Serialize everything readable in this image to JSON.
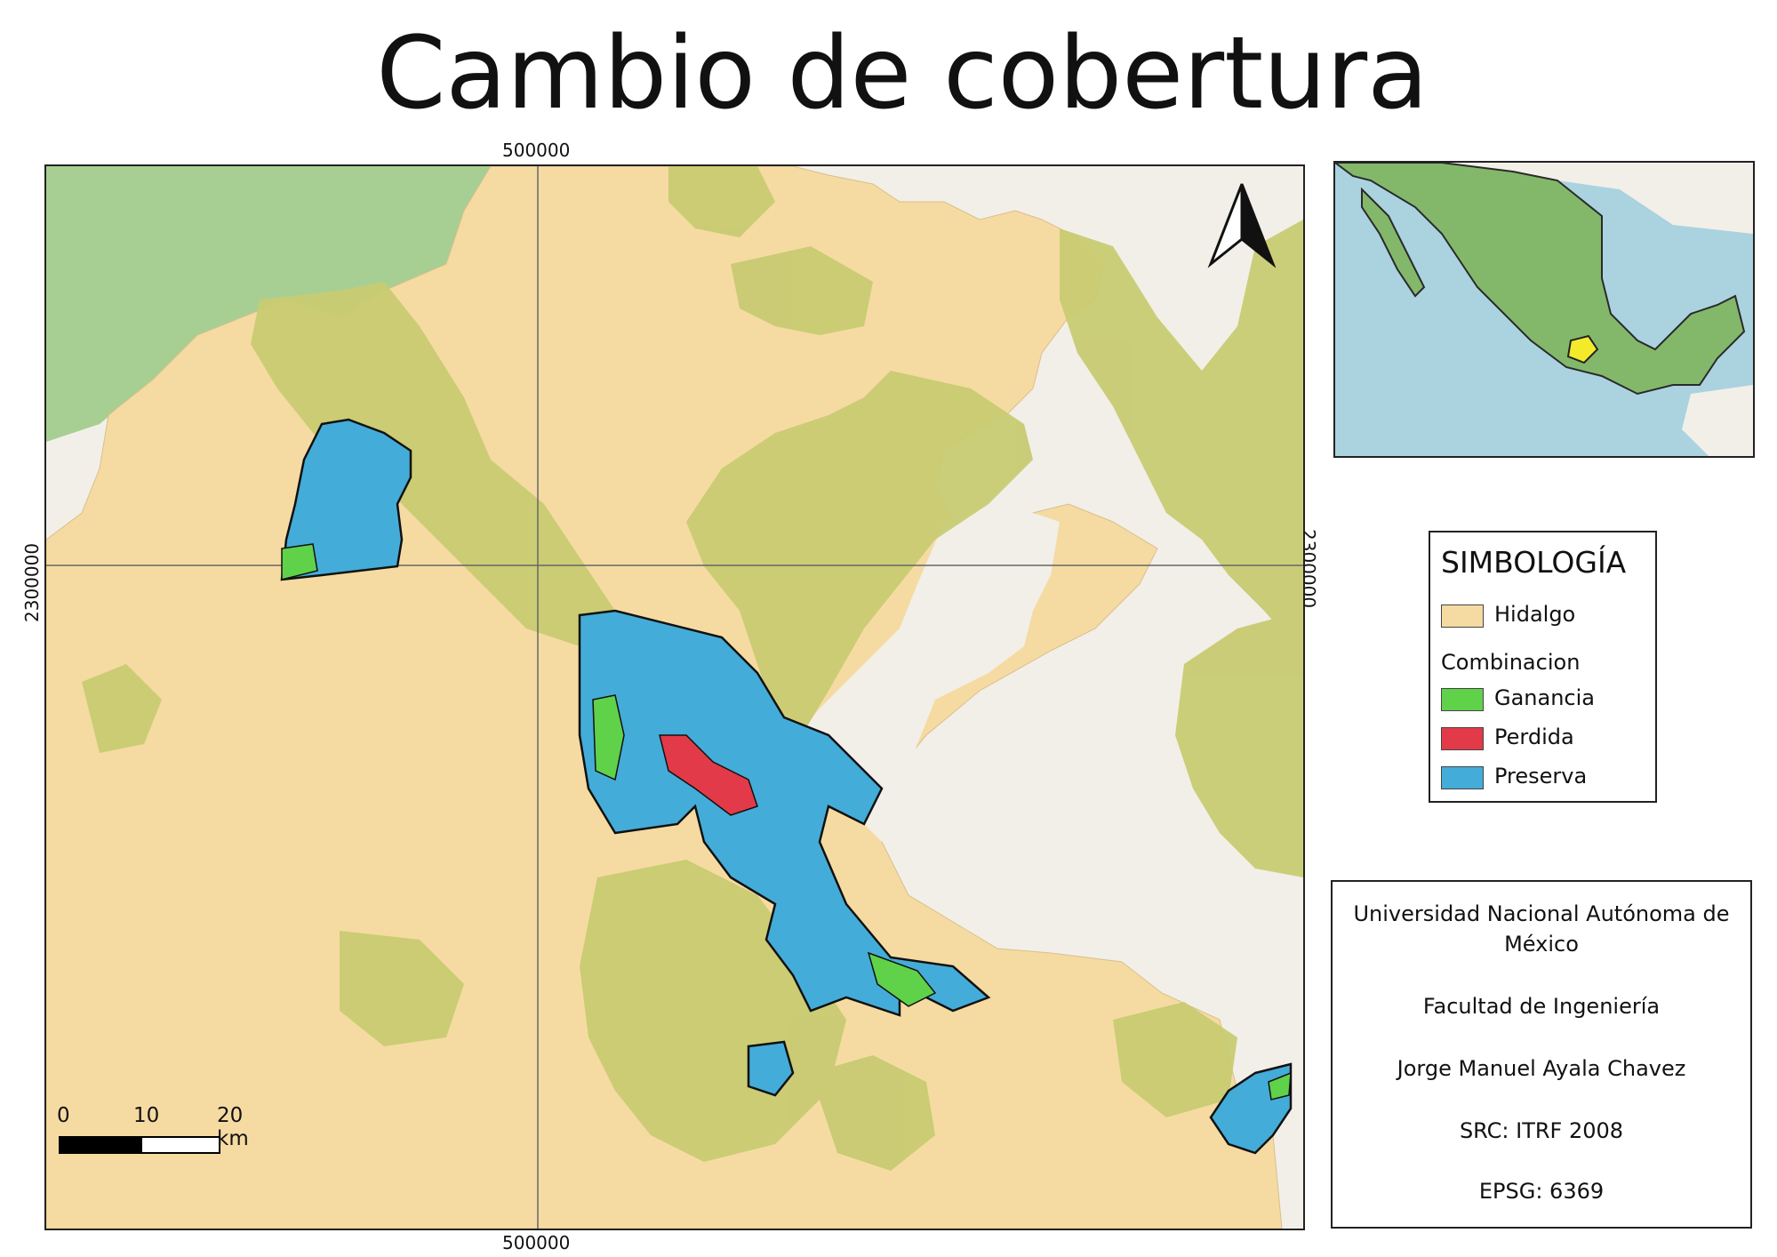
{
  "title": "Cambio de cobertura",
  "grid_labels": {
    "x_top": "500000",
    "x_bottom": "500000",
    "y_left": "2300000",
    "y_right": "2300000"
  },
  "legend": {
    "title": "SIMBOLOGÍA",
    "base_layer": {
      "label": "Hidalgo",
      "color": "#f5dba2"
    },
    "group_title": "Combinacion",
    "items": [
      {
        "label": "Ganancia",
        "color": "#5fd24a"
      },
      {
        "label": "Perdida",
        "color": "#e23a48"
      },
      {
        "label": "Preserva",
        "color": "#44acd8"
      }
    ]
  },
  "info": {
    "university_line1": "Universidad Nacional Autónoma de",
    "university_line2": "México",
    "faculty": "Facultad de Ingeniería",
    "author": "Jorge Manuel Ayala Chavez",
    "src": "SRC: ITRF 2008",
    "epsg": "EPSG: 6369"
  },
  "scale_bar": {
    "labels": [
      "0",
      "10",
      "20 km"
    ]
  },
  "colors": {
    "state_fill": "#f5dba2",
    "forest": "#c8cb72",
    "outside": "#f2efe9",
    "outside_forest": "#a7cf93",
    "ocean": "#aad3df",
    "country": "#83b86b",
    "highlight": "#f3ea2c"
  },
  "icons": [
    "north-arrow-icon"
  ]
}
